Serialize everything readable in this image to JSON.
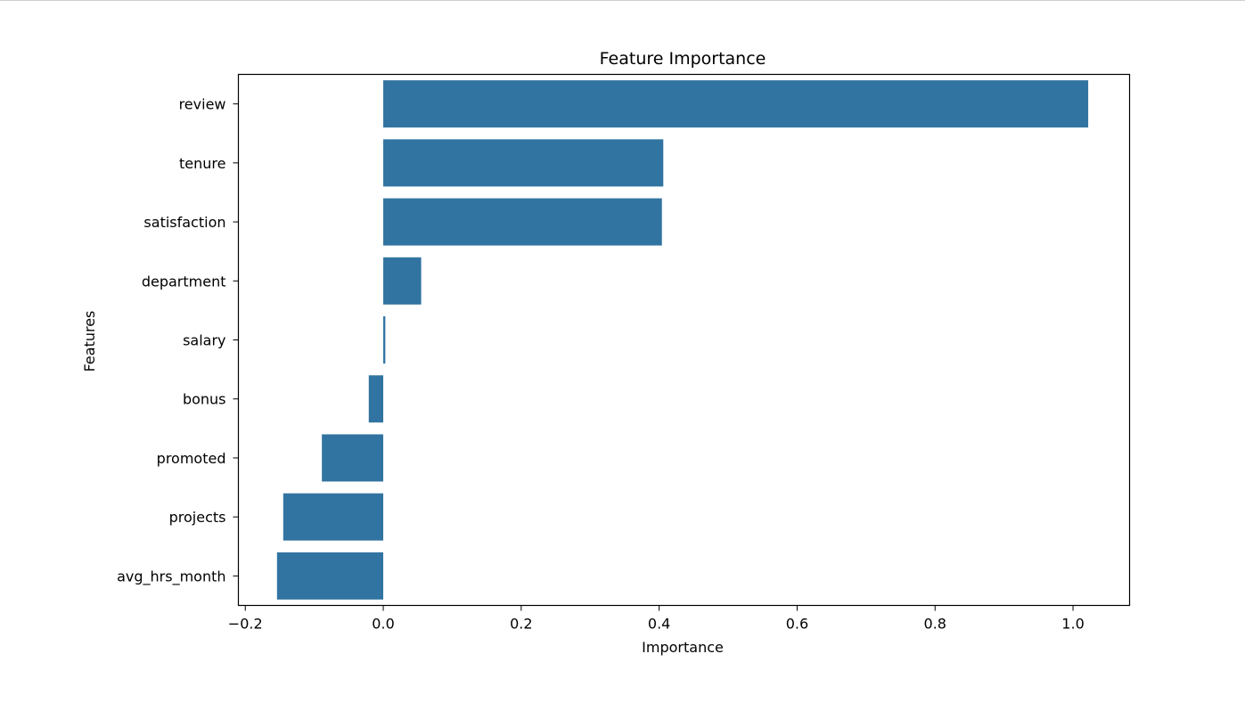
{
  "chart_data": {
    "type": "bar",
    "orientation": "horizontal",
    "title": "Feature Importance",
    "xlabel": "Importance",
    "ylabel": "Features",
    "categories": [
      "review",
      "tenure",
      "satisfaction",
      "department",
      "salary",
      "bonus",
      "promoted",
      "projects",
      "avg_hrs_month"
    ],
    "values": [
      1.022,
      0.406,
      0.404,
      0.055,
      0.003,
      -0.021,
      -0.089,
      -0.145,
      -0.154
    ],
    "xlim": [
      -0.21,
      1.082
    ],
    "xticks": [
      -0.2,
      0.0,
      0.2,
      0.4,
      0.6,
      0.8,
      1.0
    ],
    "xtick_labels": [
      "−0.2",
      "0.0",
      "0.2",
      "0.4",
      "0.6",
      "0.8",
      "1.0"
    ],
    "bar_color": "#3274a1",
    "grid": false,
    "legend": "none"
  }
}
